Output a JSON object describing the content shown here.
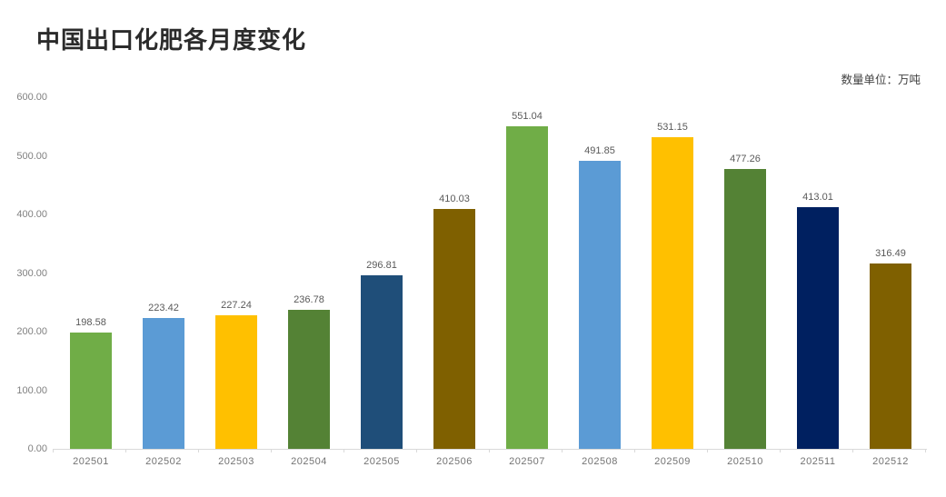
{
  "header": {
    "title": "中国出口化肥各月度变化",
    "unit_label": "数量单位：万吨"
  },
  "chart_data": {
    "type": "bar",
    "title": "中国出口化肥各月度变化",
    "unit": "万吨",
    "categories": [
      "202501",
      "202502",
      "202503",
      "202504",
      "202505",
      "202506",
      "202507",
      "202508",
      "202509",
      "202510",
      "202511",
      "202512"
    ],
    "values": [
      198.58,
      223.42,
      227.24,
      236.78,
      296.81,
      410.03,
      551.04,
      491.85,
      531.15,
      477.26,
      413.01,
      316.49
    ],
    "value_labels": [
      "198.58",
      "223.42",
      "227.24",
      "236.78",
      "296.81",
      "410.03",
      "551.04",
      "491.85",
      "531.15",
      "477.26",
      "413.01",
      "316.49"
    ],
    "bar_colors": [
      "#70AD47",
      "#5B9BD5",
      "#FFC000",
      "#548235",
      "#1F4E79",
      "#7F6000",
      "#70AD47",
      "#5B9BD5",
      "#FFC000",
      "#548235",
      "#002060",
      "#7F6000"
    ],
    "xlabel": "",
    "ylabel": "",
    "ylim": [
      0,
      600
    ],
    "ytick_labels": [
      "0.00",
      "100.00",
      "200.00",
      "300.00",
      "400.00",
      "500.00",
      "600.00"
    ],
    "ytick_values": [
      0,
      100,
      200,
      300,
      400,
      500,
      600
    ],
    "grid": false,
    "legend": false,
    "data_labels": true,
    "colors": {
      "title_text": "#2b2b2b",
      "axis_line": "#d9d9d9",
      "axis_label_text": "#808080",
      "data_label_text": "#595959",
      "background": "#ffffff"
    }
  }
}
